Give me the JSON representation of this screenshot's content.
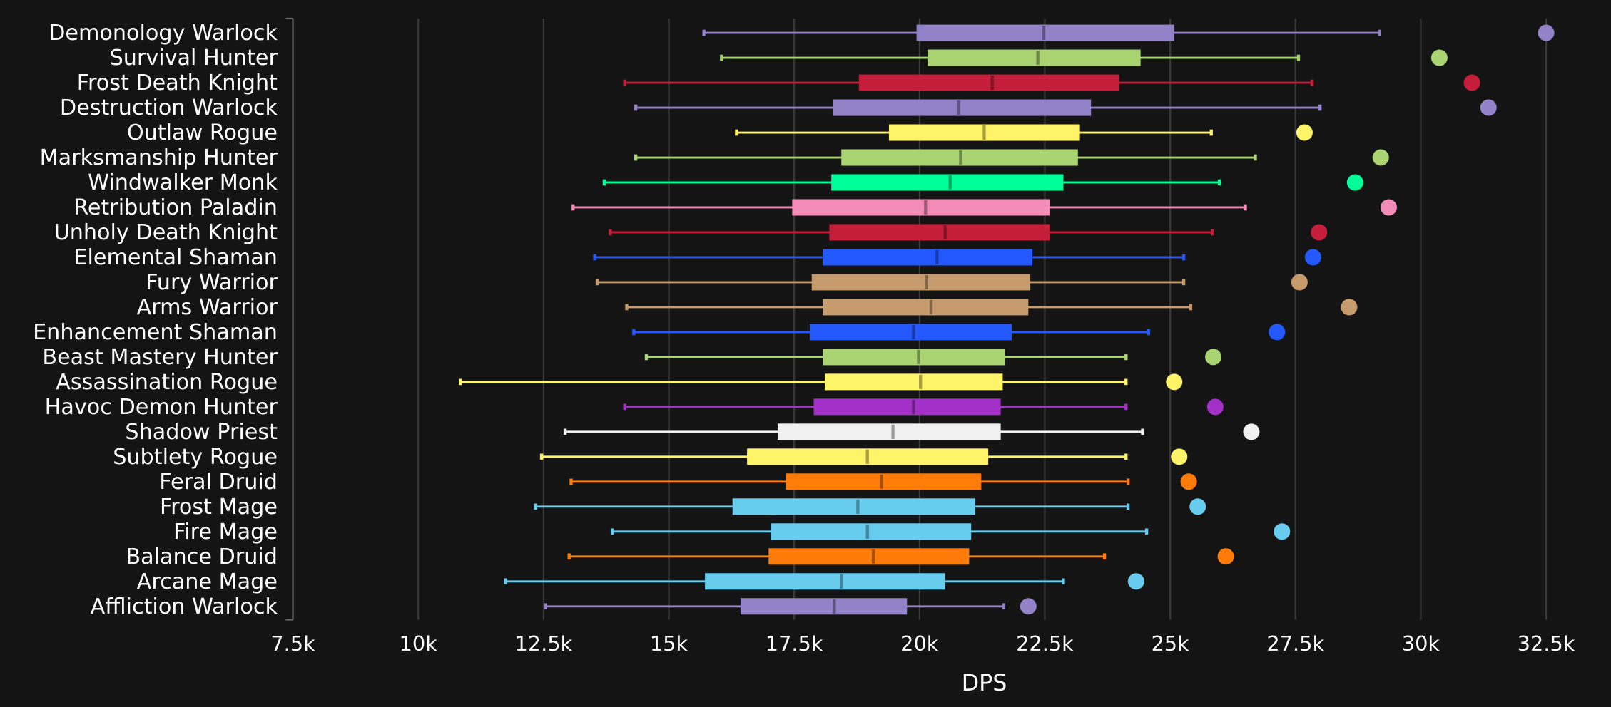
{
  "chart_data": {
    "type": "box",
    "title": "",
    "xlabel": "DPS",
    "ylabel": "",
    "xlim": [
      7500,
      32500
    ],
    "xticks": [
      "7.5k",
      "10k",
      "12.5k",
      "15k",
      "17.5k",
      "20k",
      "22.5k",
      "25k",
      "27.5k",
      "30k",
      "32.5k"
    ],
    "xtick_values": [
      7500,
      10000,
      12500,
      15000,
      17500,
      20000,
      22500,
      25000,
      27500,
      30000,
      32500
    ],
    "grid": "vertical",
    "rows": [
      {
        "name": "Demonology Warlock",
        "color": "#9482C9",
        "min": 15700,
        "q1": 19940,
        "median": 22480,
        "q3": 25080,
        "max": 29180,
        "top": 32500
      },
      {
        "name": "Survival Hunter",
        "color": "#AAD372",
        "min": 16050,
        "q1": 20160,
        "median": 22360,
        "q3": 24410,
        "max": 27560,
        "top": 30370
      },
      {
        "name": "Frost Death Knight",
        "color": "#C41E3A",
        "min": 14120,
        "q1": 18790,
        "median": 21450,
        "q3": 23980,
        "max": 27830,
        "top": 31020
      },
      {
        "name": "Destruction Warlock",
        "color": "#9482C9",
        "min": 14340,
        "q1": 18280,
        "median": 20780,
        "q3": 23420,
        "max": 27990,
        "top": 31350
      },
      {
        "name": "Outlaw Rogue",
        "color": "#FFF468",
        "min": 16350,
        "q1": 19390,
        "median": 21290,
        "q3": 23200,
        "max": 25820,
        "top": 27680
      },
      {
        "name": "Marksmanship Hunter",
        "color": "#AAD372",
        "min": 14340,
        "q1": 18440,
        "median": 20820,
        "q3": 23160,
        "max": 26700,
        "top": 29200
      },
      {
        "name": "Windwalker Monk",
        "color": "#00FF98",
        "min": 13710,
        "q1": 18240,
        "median": 20610,
        "q3": 22870,
        "max": 25980,
        "top": 28690
      },
      {
        "name": "Retribution Paladin",
        "color": "#F48CBA",
        "min": 13090,
        "q1": 17460,
        "median": 20120,
        "q3": 22600,
        "max": 26500,
        "top": 29360
      },
      {
        "name": "Unholy Death Knight",
        "color": "#C41E3A",
        "min": 13830,
        "q1": 18200,
        "median": 20510,
        "q3": 22600,
        "max": 25840,
        "top": 27970
      },
      {
        "name": "Elemental Shaman",
        "color": "#2459FF",
        "min": 13520,
        "q1": 18070,
        "median": 20350,
        "q3": 22250,
        "max": 25270,
        "top": 27850
      },
      {
        "name": "Fury Warrior",
        "color": "#C69B6D",
        "min": 13570,
        "q1": 17850,
        "median": 20140,
        "q3": 22210,
        "max": 25270,
        "top": 27580
      },
      {
        "name": "Arms Warrior",
        "color": "#C69B6D",
        "min": 14160,
        "q1": 18070,
        "median": 20230,
        "q3": 22170,
        "max": 25410,
        "top": 28570
      },
      {
        "name": "Enhancement Shaman",
        "color": "#2459FF",
        "min": 14300,
        "q1": 17810,
        "median": 19880,
        "q3": 21840,
        "max": 24570,
        "top": 27130
      },
      {
        "name": "Beast Mastery Hunter",
        "color": "#AAD372",
        "min": 14550,
        "q1": 18070,
        "median": 19980,
        "q3": 21700,
        "max": 24120,
        "top": 25860
      },
      {
        "name": "Assassination Rogue",
        "color": "#FFF468",
        "min": 10840,
        "q1": 18110,
        "median": 20020,
        "q3": 21660,
        "max": 24120,
        "top": 25080
      },
      {
        "name": "Havoc Demon Hunter",
        "color": "#A330C9",
        "min": 14120,
        "q1": 17890,
        "median": 19880,
        "q3": 21620,
        "max": 24120,
        "top": 25900
      },
      {
        "name": "Shadow Priest",
        "color": "#F0F0F0",
        "min": 12930,
        "q1": 17170,
        "median": 19470,
        "q3": 21620,
        "max": 24450,
        "top": 26620
      },
      {
        "name": "Subtlety Rogue",
        "color": "#FFF468",
        "min": 12460,
        "q1": 16560,
        "median": 18960,
        "q3": 21370,
        "max": 24120,
        "top": 25180
      },
      {
        "name": "Feral Druid",
        "color": "#FF7C0A",
        "min": 13050,
        "q1": 17330,
        "median": 19240,
        "q3": 21230,
        "max": 24160,
        "top": 25370
      },
      {
        "name": "Frost Mage",
        "color": "#68CCEF",
        "min": 12340,
        "q1": 16270,
        "median": 18770,
        "q3": 21110,
        "max": 24160,
        "top": 25550
      },
      {
        "name": "Fire Mage",
        "color": "#68CCEF",
        "min": 13870,
        "q1": 17030,
        "median": 18960,
        "q3": 21030,
        "max": 24530,
        "top": 27230
      },
      {
        "name": "Balance Druid",
        "color": "#FF7C0A",
        "min": 13010,
        "q1": 16990,
        "median": 19080,
        "q3": 20990,
        "max": 23690,
        "top": 26110
      },
      {
        "name": "Arcane Mage",
        "color": "#68CCEF",
        "min": 11740,
        "q1": 15720,
        "median": 18440,
        "q3": 20510,
        "max": 22870,
        "top": 24320
      },
      {
        "name": "Affliction Warlock",
        "color": "#9482C9",
        "min": 12540,
        "q1": 16430,
        "median": 18300,
        "q3": 19750,
        "max": 21680,
        "top": 22170
      }
    ]
  }
}
